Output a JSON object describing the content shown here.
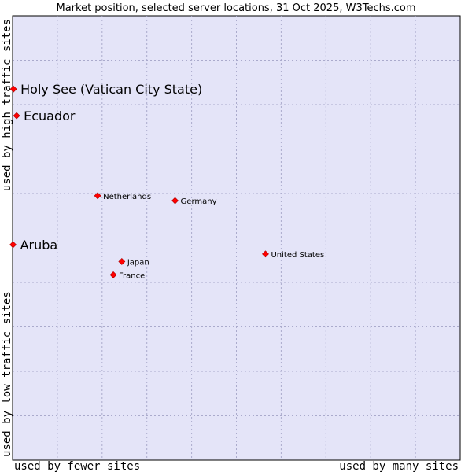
{
  "chart_data": {
    "type": "scatter",
    "title": "Market position, selected server locations, 31 Oct 2025, W3Techs.com",
    "xlabel_left": "used by fewer sites",
    "xlabel_right": "used by many sites",
    "ylabel_bottom": "used by low traffic sites",
    "ylabel_top": "used by high traffic sites",
    "xlim": [
      0,
      100
    ],
    "ylim": [
      0,
      100
    ],
    "grid": true,
    "colors": {
      "plot_bg": "#e4e4f8",
      "grid": "#aaaacc",
      "marker": "#ff0000",
      "marker_edge": "#aa0000"
    },
    "points": [
      {
        "label": "Holy See (Vatican City State)",
        "x": 0.2,
        "y": 83.5,
        "emphasis": true
      },
      {
        "label": "Ecuador",
        "x": 0.9,
        "y": 77.5,
        "emphasis": true
      },
      {
        "label": "Aruba",
        "x": 0.1,
        "y": 48.5,
        "emphasis": true
      },
      {
        "label": "Netherlands",
        "x": 19.0,
        "y": 59.5,
        "emphasis": false
      },
      {
        "label": "Germany",
        "x": 36.3,
        "y": 58.4,
        "emphasis": false
      },
      {
        "label": "United States",
        "x": 56.5,
        "y": 46.4,
        "emphasis": false
      },
      {
        "label": "Japan",
        "x": 24.4,
        "y": 44.7,
        "emphasis": false
      },
      {
        "label": "France",
        "x": 22.5,
        "y": 41.7,
        "emphasis": false
      }
    ]
  }
}
